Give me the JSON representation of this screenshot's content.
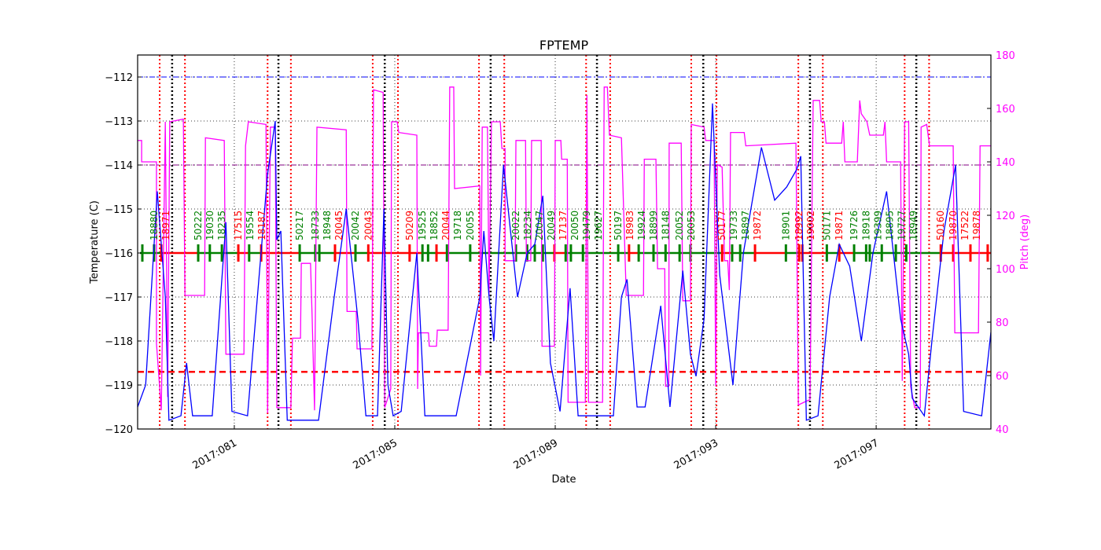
{
  "chart_data": {
    "type": "line",
    "title": "FPTEMP",
    "xlabel": "Date",
    "ylabel": "Temperature (C)",
    "y2label": "Pitch (deg)",
    "xlim": [
      78.59,
      99.86
    ],
    "ylim": [
      -120,
      -111.5
    ],
    "y2lim": [
      40,
      180
    ],
    "grid": true,
    "x_ticks": [
      {
        "value": 81,
        "label": "2017:081"
      },
      {
        "value": 85,
        "label": "2017:085"
      },
      {
        "value": 89,
        "label": "2017:089"
      },
      {
        "value": 93,
        "label": "2017:093"
      },
      {
        "value": 97,
        "label": "2017:097"
      }
    ],
    "y_ticks": [
      -120,
      -119,
      -118,
      -117,
      -116,
      -115,
      -114,
      -113,
      -112
    ],
    "y2_ticks": [
      40,
      60,
      80,
      100,
      120,
      140,
      160,
      180
    ],
    "colors": {
      "temperature": "#0000ff",
      "pitch": "#ff00ff",
      "planning_limit": "#0000ff",
      "caution_limit": "#800080",
      "threshold": "#ff0000",
      "obsid_green": "#008000",
      "obsid_red": "#ff0000",
      "pitch_axis": "#ff00ff"
    },
    "hlines": [
      {
        "y": -112,
        "color": "#0000ff",
        "style": "dashdot"
      },
      {
        "y": -114,
        "color": "#800080",
        "style": "dashdot"
      },
      {
        "y": -118.7,
        "color": "#ff0000",
        "style": "dashed"
      }
    ],
    "red_vlines": [
      79.14,
      79.77,
      81.83,
      82.41,
      84.45,
      85.08,
      87.1,
      87.73,
      89.77,
      90.37,
      92.39,
      93.02,
      95.06,
      95.67,
      97.71,
      98.32
    ],
    "black_vlines": [
      79.45,
      82.1,
      84.75,
      87.39,
      90.04,
      92.69,
      95.35,
      98.0
    ],
    "temperature": [
      [
        78.59,
        -119.5
      ],
      [
        78.79,
        -119
      ],
      [
        79.08,
        -114.6
      ],
      [
        79.28,
        -117
      ],
      [
        79.37,
        -119.8
      ],
      [
        79.67,
        -119.7
      ],
      [
        79.81,
        -118.5
      ],
      [
        79.96,
        -119.7
      ],
      [
        80.45,
        -119.7
      ],
      [
        80.79,
        -115.3
      ],
      [
        80.94,
        -119.6
      ],
      [
        81.33,
        -119.7
      ],
      [
        81.83,
        -114.2
      ],
      [
        82.02,
        -113
      ],
      [
        82.06,
        -115.7
      ],
      [
        82.16,
        -115.5
      ],
      [
        82.32,
        -119.8
      ],
      [
        83.1,
        -119.8
      ],
      [
        83.49,
        -117
      ],
      [
        83.79,
        -115
      ],
      [
        84.08,
        -117.5
      ],
      [
        84.28,
        -119.7
      ],
      [
        84.57,
        -119.7
      ],
      [
        84.73,
        -115
      ],
      [
        84.83,
        -119
      ],
      [
        84.96,
        -119.7
      ],
      [
        85.16,
        -119.6
      ],
      [
        85.55,
        -116
      ],
      [
        85.75,
        -119.7
      ],
      [
        86.53,
        -119.7
      ],
      [
        87.12,
        -117
      ],
      [
        87.22,
        -115.5
      ],
      [
        87.35,
        -117
      ],
      [
        87.47,
        -118
      ],
      [
        87.71,
        -114
      ],
      [
        88.06,
        -117
      ],
      [
        88.3,
        -116
      ],
      [
        88.49,
        -115.8
      ],
      [
        88.69,
        -114.7
      ],
      [
        88.88,
        -118.5
      ],
      [
        89.12,
        -119.6
      ],
      [
        89.37,
        -116.8
      ],
      [
        89.57,
        -119.7
      ],
      [
        90.45,
        -119.7
      ],
      [
        90.65,
        -117
      ],
      [
        90.79,
        -116.6
      ],
      [
        91.04,
        -119.5
      ],
      [
        91.24,
        -119.5
      ],
      [
        91.63,
        -117.2
      ],
      [
        91.86,
        -119.5
      ],
      [
        92.18,
        -116.4
      ],
      [
        92.37,
        -118.3
      ],
      [
        92.51,
        -118.8
      ],
      [
        92.71,
        -117.5
      ],
      [
        92.92,
        -112.6
      ],
      [
        93.1,
        -116.5
      ],
      [
        93.43,
        -119
      ],
      [
        93.69,
        -116
      ],
      [
        94.14,
        -113.6
      ],
      [
        94.47,
        -114.8
      ],
      [
        94.77,
        -114.5
      ],
      [
        95.02,
        -114.1
      ],
      [
        95.12,
        -113.8
      ],
      [
        95.26,
        -119.8
      ],
      [
        95.55,
        -119.7
      ],
      [
        95.84,
        -117
      ],
      [
        96.08,
        -115.8
      ],
      [
        96.34,
        -116.3
      ],
      [
        96.63,
        -118
      ],
      [
        96.92,
        -116
      ],
      [
        97.26,
        -114.6
      ],
      [
        97.61,
        -117.5
      ],
      [
        97.81,
        -118.3
      ],
      [
        97.9,
        -119.3
      ],
      [
        98.2,
        -119.7
      ],
      [
        98.39,
        -118
      ],
      [
        98.69,
        -115.5
      ],
      [
        98.98,
        -114
      ],
      [
        99.18,
        -119.6
      ],
      [
        99.63,
        -119.7
      ],
      [
        99.86,
        -117.8
      ]
    ],
    "pitch": [
      [
        78.59,
        148
      ],
      [
        78.69,
        148
      ],
      [
        78.69,
        140
      ],
      [
        79.06,
        140
      ],
      [
        79.06,
        72
      ],
      [
        79.18,
        47
      ],
      [
        79.28,
        155
      ],
      [
        79.34,
        52
      ],
      [
        79.39,
        155
      ],
      [
        79.73,
        156
      ],
      [
        79.77,
        90
      ],
      [
        80.26,
        90
      ],
      [
        80.28,
        149
      ],
      [
        80.75,
        148
      ],
      [
        80.79,
        68
      ],
      [
        81.24,
        68
      ],
      [
        81.28,
        146
      ],
      [
        81.35,
        155
      ],
      [
        81.79,
        154
      ],
      [
        81.83,
        46
      ],
      [
        81.9,
        153
      ],
      [
        82.02,
        153
      ],
      [
        82.06,
        48
      ],
      [
        82.41,
        48
      ],
      [
        82.45,
        74
      ],
      [
        82.65,
        74
      ],
      [
        82.67,
        102
      ],
      [
        82.9,
        102
      ],
      [
        82.94,
        82
      ],
      [
        83.0,
        47
      ],
      [
        83.06,
        153
      ],
      [
        83.79,
        152
      ],
      [
        83.81,
        84
      ],
      [
        84.04,
        84
      ],
      [
        84.06,
        70
      ],
      [
        84.43,
        70
      ],
      [
        84.47,
        167
      ],
      [
        84.71,
        166
      ],
      [
        84.75,
        48
      ],
      [
        84.9,
        55
      ],
      [
        84.92,
        155
      ],
      [
        85.06,
        155
      ],
      [
        85.1,
        151
      ],
      [
        85.55,
        150
      ],
      [
        85.57,
        55
      ],
      [
        85.59,
        76
      ],
      [
        85.84,
        76
      ],
      [
        85.86,
        71
      ],
      [
        86.04,
        71
      ],
      [
        86.06,
        77
      ],
      [
        86.33,
        77
      ],
      [
        86.37,
        168
      ],
      [
        86.47,
        168
      ],
      [
        86.49,
        130
      ],
      [
        87.12,
        131
      ],
      [
        87.14,
        60
      ],
      [
        87.18,
        153
      ],
      [
        87.31,
        153
      ],
      [
        87.35,
        90
      ],
      [
        87.41,
        155
      ],
      [
        87.63,
        155
      ],
      [
        87.67,
        145
      ],
      [
        87.75,
        145
      ],
      [
        87.75,
        103
      ],
      [
        88.0,
        103
      ],
      [
        88.02,
        148
      ],
      [
        88.26,
        148
      ],
      [
        88.28,
        103
      ],
      [
        88.39,
        103
      ],
      [
        88.41,
        148
      ],
      [
        88.65,
        148
      ],
      [
        88.67,
        71
      ],
      [
        88.98,
        71
      ],
      [
        89.0,
        148
      ],
      [
        89.14,
        148
      ],
      [
        89.16,
        141
      ],
      [
        89.3,
        141
      ],
      [
        89.32,
        50
      ],
      [
        89.75,
        50
      ],
      [
        89.79,
        165
      ],
      [
        89.83,
        50
      ],
      [
        90.18,
        50
      ],
      [
        90.22,
        168
      ],
      [
        90.3,
        168
      ],
      [
        90.35,
        150
      ],
      [
        90.65,
        149
      ],
      [
        90.77,
        90
      ],
      [
        91.2,
        90
      ],
      [
        91.22,
        141
      ],
      [
        91.51,
        141
      ],
      [
        91.55,
        100
      ],
      [
        91.73,
        100
      ],
      [
        91.75,
        56
      ],
      [
        91.83,
        56
      ],
      [
        91.84,
        147
      ],
      [
        92.14,
        147
      ],
      [
        92.18,
        88
      ],
      [
        92.37,
        88
      ],
      [
        92.39,
        154
      ],
      [
        92.71,
        153
      ],
      [
        92.75,
        148
      ],
      [
        92.96,
        148
      ],
      [
        93.0,
        56
      ],
      [
        93.04,
        139
      ],
      [
        93.16,
        138
      ],
      [
        93.22,
        103
      ],
      [
        93.3,
        103
      ],
      [
        93.34,
        92
      ],
      [
        93.37,
        151
      ],
      [
        93.71,
        151
      ],
      [
        93.75,
        146
      ],
      [
        95.0,
        147
      ],
      [
        95.06,
        49
      ],
      [
        95.2,
        50
      ],
      [
        95.35,
        51
      ],
      [
        95.43,
        163
      ],
      [
        95.59,
        163
      ],
      [
        95.63,
        155
      ],
      [
        95.71,
        155
      ],
      [
        95.75,
        147
      ],
      [
        96.14,
        147
      ],
      [
        96.18,
        155
      ],
      [
        96.22,
        140
      ],
      [
        96.53,
        140
      ],
      [
        96.59,
        163
      ],
      [
        96.63,
        158
      ],
      [
        96.77,
        155
      ],
      [
        96.84,
        150
      ],
      [
        97.18,
        150
      ],
      [
        97.22,
        155
      ],
      [
        97.26,
        140
      ],
      [
        97.61,
        140
      ],
      [
        97.65,
        58
      ],
      [
        97.71,
        155
      ],
      [
        97.81,
        155
      ],
      [
        97.86,
        56
      ],
      [
        97.96,
        48
      ],
      [
        98.1,
        48
      ],
      [
        98.12,
        153
      ],
      [
        98.26,
        154
      ],
      [
        98.33,
        146
      ],
      [
        98.92,
        146
      ],
      [
        98.96,
        76
      ],
      [
        99.55,
        76
      ],
      [
        99.59,
        146
      ],
      [
        99.86,
        146
      ]
    ],
    "obsid_level": -116,
    "obsids": [
      {
        "x": 79.0,
        "label": "18880",
        "color": "green"
      },
      {
        "x": 79.18,
        "label": "18971",
        "color": "red"
      },
      {
        "x": 80.1,
        "label": "50222",
        "color": "green"
      },
      {
        "x": 80.39,
        "label": "19030",
        "color": "green"
      },
      {
        "x": 80.69,
        "label": "18235",
        "color": "green"
      },
      {
        "x": 81.1,
        "label": "17515",
        "color": "red"
      },
      {
        "x": 81.37,
        "label": "19554",
        "color": "green"
      },
      {
        "x": 81.67,
        "label": "18187",
        "color": "red"
      },
      {
        "x": 82.63,
        "label": "50217",
        "color": "green"
      },
      {
        "x": 83.02,
        "label": "18733",
        "color": "green"
      },
      {
        "x": 83.12,
        "label": "18948",
        "color": "green"
      },
      {
        "x": 83.51,
        "label": "20045",
        "color": "red"
      },
      {
        "x": 84.02,
        "label": "20042",
        "color": "green"
      },
      {
        "x": 84.34,
        "label": "20043",
        "color": "red"
      },
      {
        "x": 85.37,
        "label": "50209",
        "color": "red"
      },
      {
        "x": 85.69,
        "label": "19525",
        "color": "green"
      },
      {
        "x": 85.83,
        "label": "18852",
        "color": "green"
      },
      {
        "x": 86.04,
        "label": "20044",
        "color": "red"
      },
      {
        "x": 86.3,
        "label": "19718",
        "color": "green"
      },
      {
        "x": 86.88,
        "label": "20055",
        "color": "green"
      },
      {
        "x": 88.02,
        "label": "20022",
        "color": "green"
      },
      {
        "x": 88.3,
        "label": "18234",
        "color": "green"
      },
      {
        "x": 88.49,
        "label": "20047",
        "color": "green"
      },
      {
        "x": 88.69,
        "label": "20049",
        "color": "green"
      },
      {
        "x": 88.98,
        "label": "17137",
        "color": "red"
      },
      {
        "x": 89.26,
        "label": "20050",
        "color": "green"
      },
      {
        "x": 89.39,
        "label": "19479",
        "color": "green"
      },
      {
        "x": 89.69,
        "label": "19627",
        "color": "green"
      },
      {
        "x": 90.57,
        "label": "50197",
        "color": "green"
      },
      {
        "x": 90.84,
        "label": "18983",
        "color": "red"
      },
      {
        "x": 91.08,
        "label": "19924",
        "color": "green"
      },
      {
        "x": 91.45,
        "label": "18899",
        "color": "green"
      },
      {
        "x": 91.75,
        "label": "18148",
        "color": "green"
      },
      {
        "x": 92.1,
        "label": "20052",
        "color": "green"
      },
      {
        "x": 92.37,
        "label": "20053",
        "color": "green"
      },
      {
        "x": 93.16,
        "label": "50177",
        "color": "red"
      },
      {
        "x": 93.41,
        "label": "19733",
        "color": "green"
      },
      {
        "x": 93.61,
        "label": "18897",
        "color": "green"
      },
      {
        "x": 93.98,
        "label": "19872",
        "color": "red"
      },
      {
        "x": 94.75,
        "label": "18901",
        "color": "green"
      },
      {
        "x": 95.08,
        "label": "18992",
        "color": "red"
      },
      {
        "x": 95.16,
        "label": "19002",
        "color": "red"
      },
      {
        "x": 95.77,
        "label": "50171",
        "color": "green"
      },
      {
        "x": 96.08,
        "label": "19871",
        "color": "red"
      },
      {
        "x": 96.45,
        "label": "19726",
        "color": "green"
      },
      {
        "x": 96.75,
        "label": "18918",
        "color": "green"
      },
      {
        "x": 96.84,
        "label": "19399",
        "color": "green"
      },
      {
        "x": 97.14,
        "label": "18895",
        "color": "green"
      },
      {
        "x": 97.49,
        "label": "19727",
        "color": "green"
      },
      {
        "x": 97.75,
        "label": "18949",
        "color": "green"
      },
      {
        "x": 98.61,
        "label": "50160",
        "color": "red"
      },
      {
        "x": 98.92,
        "label": "19870",
        "color": "red"
      },
      {
        "x": 99.35,
        "label": "17522",
        "color": "red"
      },
      {
        "x": 99.78,
        "label": "19878",
        "color": "red"
      }
    ]
  }
}
